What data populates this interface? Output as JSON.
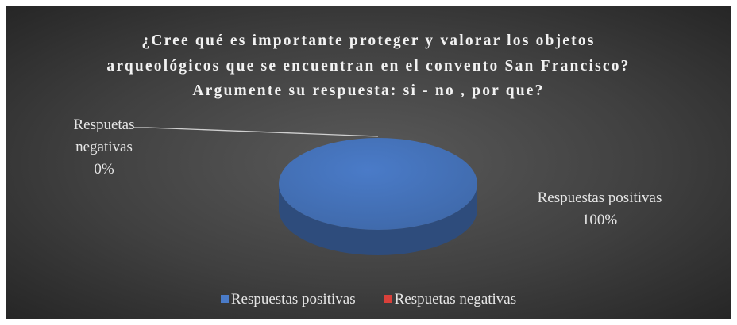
{
  "chart_data": {
    "type": "pie",
    "title": "¿Cree qué es importante proteger y valorar los objetos arqueológicos que se encuentran en el convento San Francisco? Argumente su respuesta: si - no , por que?",
    "categories": [
      "Respuestas positivas",
      "Respuetas negativas"
    ],
    "values": [
      100,
      0
    ],
    "value_labels": [
      "100%",
      "0%"
    ],
    "colors": [
      "#4a7bc8",
      "#d9403a"
    ],
    "legend": "bottom"
  }
}
